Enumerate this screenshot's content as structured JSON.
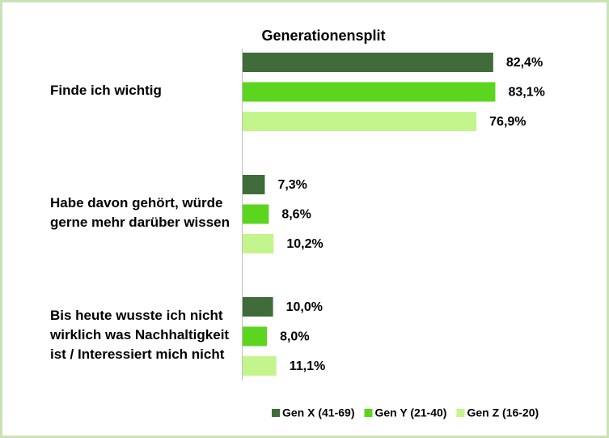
{
  "chart_data": {
    "type": "hbar",
    "title": "Generationensplit",
    "categories": [
      "Finde ich wichtig",
      "Habe davon gehört, würde gerne mehr darüber wissen",
      "Bis heute wusste ich nicht wirklich was Nachhaltigkeit ist / Interessiert mich nicht"
    ],
    "xlim": [
      0,
      100
    ],
    "series": [
      {
        "name": "Gen X (41-69)",
        "color": "#3f6c3a",
        "values": [
          82.4,
          7.3,
          10.0
        ],
        "value_labels": [
          "82,4%",
          "7,3%",
          "10,0%"
        ]
      },
      {
        "name": "Gen Y (21-40)",
        "color": "#5cd51f",
        "values": [
          83.1,
          8.6,
          8.0
        ],
        "value_labels": [
          "83,1%",
          "8,6%",
          "8,0%"
        ]
      },
      {
        "name": "Gen Z (16-20)",
        "color": "#c4f58c",
        "values": [
          76.9,
          10.2,
          11.1
        ],
        "value_labels": [
          "76,9%",
          "10,2%",
          "11,1%"
        ]
      }
    ],
    "legend": "bottom"
  }
}
